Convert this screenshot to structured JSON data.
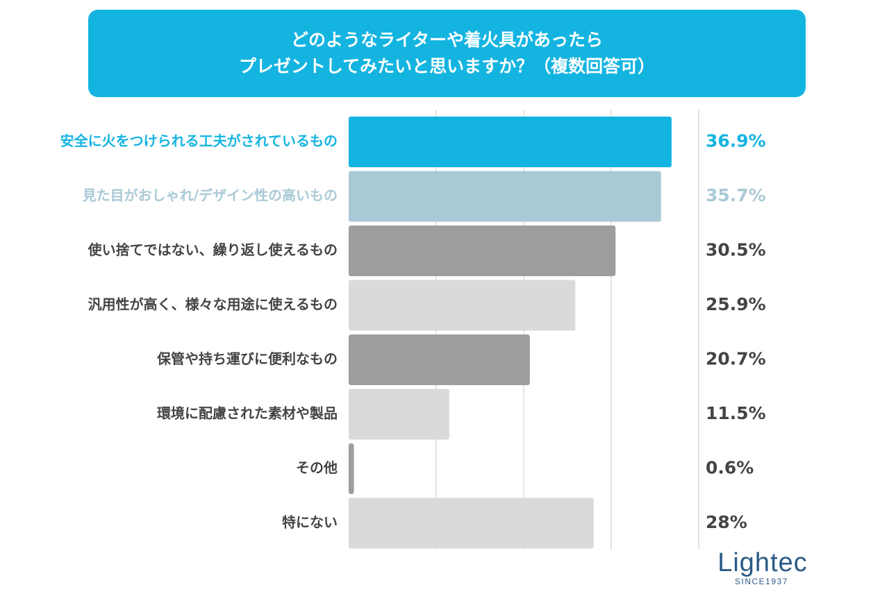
{
  "chart_data": {
    "type": "bar",
    "orientation": "horizontal",
    "title_lines": [
      "どのようなライターや着火具があったら",
      "プレゼントしてみたいと思いますか？（複数回答可）"
    ],
    "categories": [
      "安全に火をつけられる工夫がされているもの",
      "見た目がおしゃれ/デザイン性の高いもの",
      "使い捨てではない、繰り返し使えるもの",
      "汎用性が高く、様々な用途に使えるもの",
      "保管や持ち運びに便利なもの",
      "環境に配慮された素材や製品",
      "その他",
      "特にない"
    ],
    "values": [
      36.9,
      35.7,
      30.5,
      25.9,
      20.7,
      11.5,
      0.6,
      28
    ],
    "value_labels": [
      "36.9%",
      "35.7%",
      "30.5%",
      "25.9%",
      "20.7%",
      "11.5%",
      "0.6%",
      "28%"
    ],
    "unit": "%",
    "xlim": [
      0,
      40
    ],
    "grid": true,
    "colors": {
      "bars": [
        "#14b4e1",
        "#a9c9d6",
        "#9d9d9d",
        "#dadada",
        "#9d9d9d",
        "#dadada",
        "#9d9d9d",
        "#dadada"
      ],
      "labels": [
        "#14b4e1",
        "#a9c9d6",
        "#444444",
        "#444444",
        "#444444",
        "#444444",
        "#444444",
        "#444444"
      ],
      "title_background": "#14b4e1",
      "gridline": "#c8c8c8"
    }
  },
  "logo": {
    "wordmark": "Lightec",
    "tagline": "SINCE1937"
  }
}
